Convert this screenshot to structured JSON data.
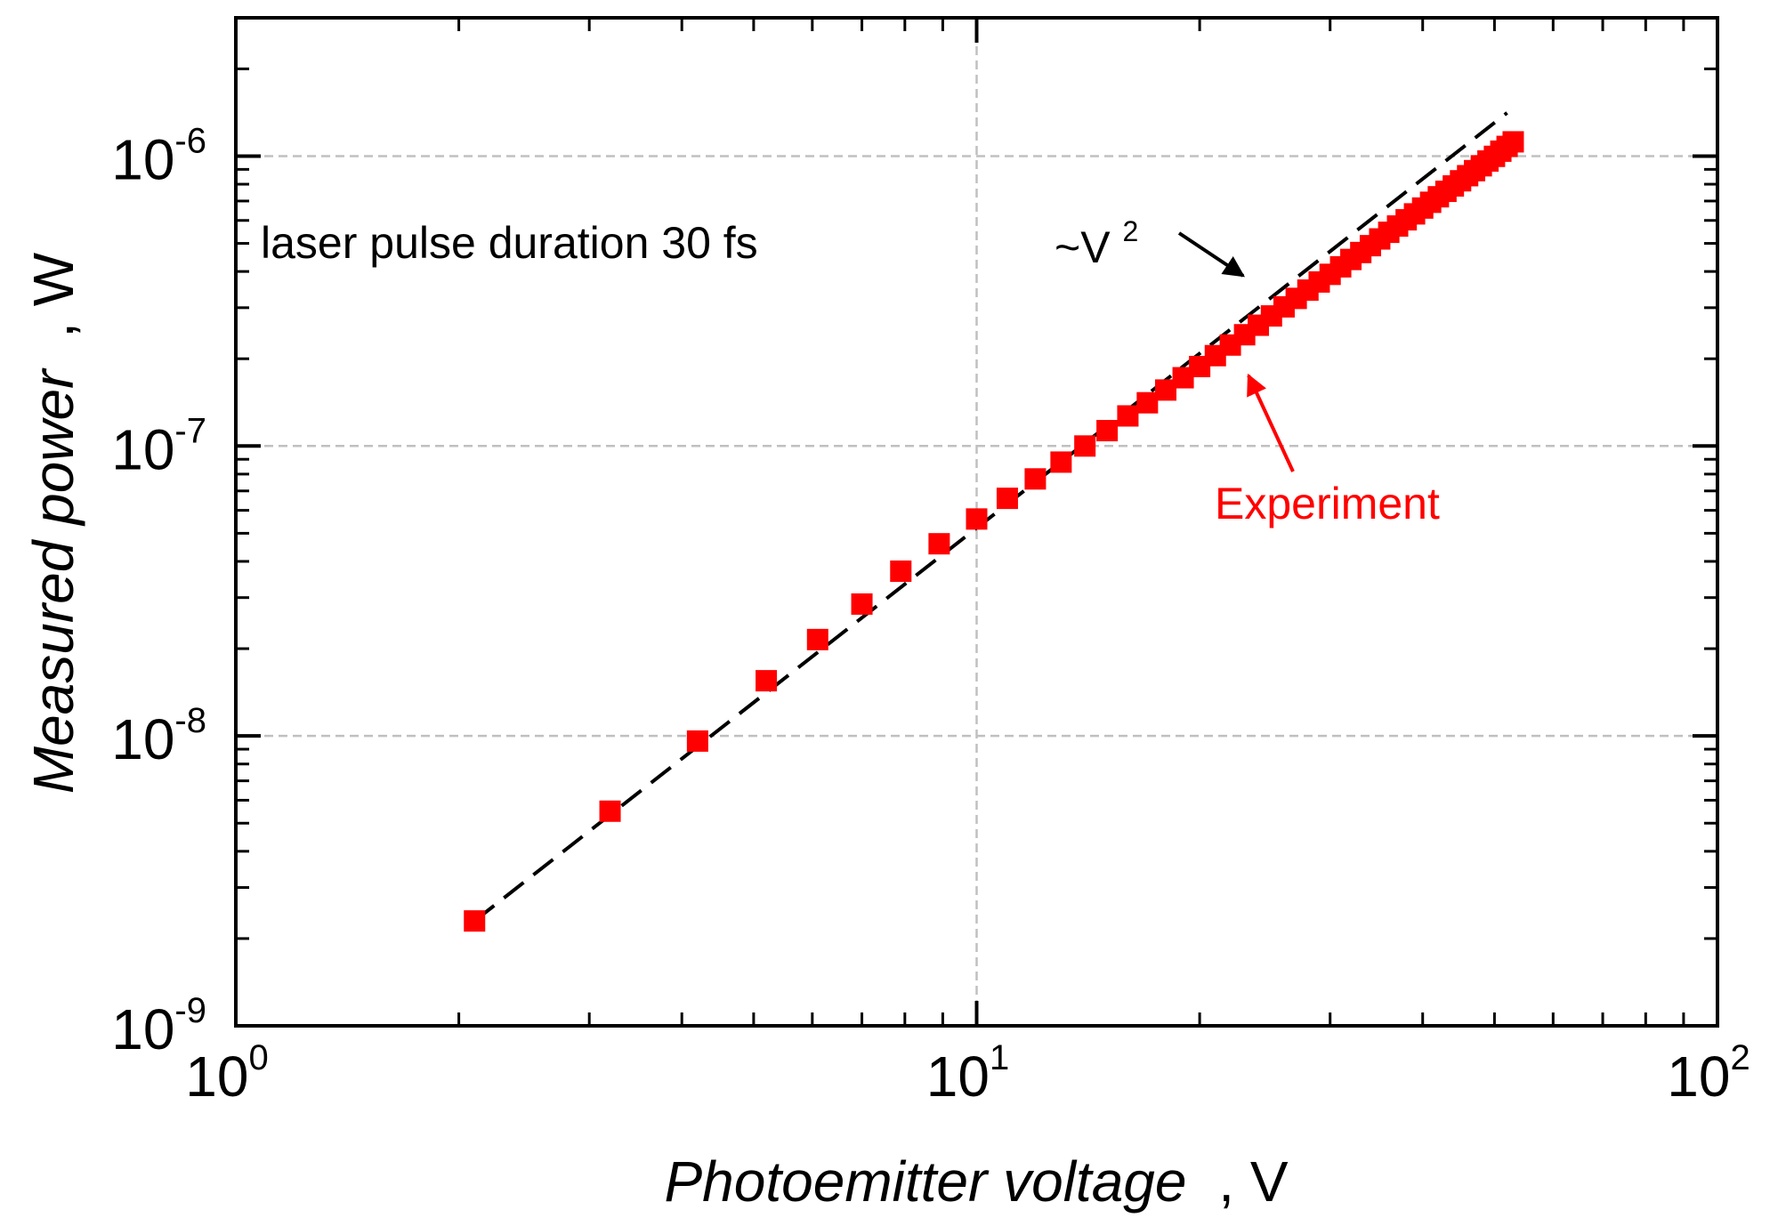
{
  "chart_data": {
    "type": "scatter",
    "title": "",
    "xlabel": "Photoemitter voltage",
    "xlabel_unit": ", V",
    "ylabel": "Measured power",
    "ylabel_unit": ", W",
    "xscale": "log",
    "yscale": "log",
    "xlim": [
      1,
      100
    ],
    "ylim": [
      1e-09,
      3e-06
    ],
    "grid": true,
    "x_ticks": [
      {
        "base": "10",
        "exp": "0",
        "value": 1
      },
      {
        "base": "10",
        "exp": "1",
        "value": 10
      },
      {
        "base": "10",
        "exp": "2",
        "value": 100
      }
    ],
    "y_ticks": [
      {
        "base": "10",
        "exp": "-9",
        "value": 1e-09
      },
      {
        "base": "10",
        "exp": "-8",
        "value": 1e-08
      },
      {
        "base": "10",
        "exp": "-7",
        "value": 1e-07
      },
      {
        "base": "10",
        "exp": "-6",
        "value": 1e-06
      }
    ],
    "series": [
      {
        "name": "Experiment",
        "marker": "square",
        "color": "#ff0000",
        "x": [
          2.1,
          3.2,
          4.2,
          5.2,
          6.1,
          7.0,
          7.9,
          8.9,
          10.0,
          11.0,
          12.0,
          13.0,
          14.0,
          15.0,
          16.0,
          17.0,
          18.0,
          19.0,
          20.0,
          21.0,
          22.0,
          23.0,
          24.0,
          25.0,
          26.0,
          27.0,
          28.0,
          29.0,
          30.0,
          31.0,
          32.0,
          33.0,
          34.0,
          35.0,
          36.0,
          37.0,
          38.0,
          39.0,
          40.0,
          41.0,
          42.0,
          43.0,
          44.0,
          45.0,
          46.0,
          47.0,
          48.0,
          49.0,
          50.0,
          51.0,
          52.0,
          53.0
        ],
        "y": [
          2.3e-09,
          5.5e-09,
          9.6e-09,
          1.55e-08,
          2.15e-08,
          2.85e-08,
          3.7e-08,
          4.6e-08,
          5.6e-08,
          6.6e-08,
          7.7e-08,
          8.8e-08,
          1e-07,
          1.13e-07,
          1.27e-07,
          1.41e-07,
          1.56e-07,
          1.72e-07,
          1.88e-07,
          2.05e-07,
          2.23e-07,
          2.42e-07,
          2.61e-07,
          2.81e-07,
          3.02e-07,
          3.23e-07,
          3.45e-07,
          3.68e-07,
          3.91e-07,
          4.15e-07,
          4.4e-07,
          4.65e-07,
          4.91e-07,
          5.18e-07,
          5.46e-07,
          5.74e-07,
          6.03e-07,
          6.32e-07,
          6.62e-07,
          6.93e-07,
          7.24e-07,
          7.56e-07,
          7.89e-07,
          8.22e-07,
          8.56e-07,
          8.91e-07,
          9.26e-07,
          9.62e-07,
          9.98e-07,
          1.04e-06,
          1.08e-06,
          1.12e-06
        ]
      },
      {
        "name": "~V^2",
        "style": "dashed",
        "color": "#000000",
        "x": [
          2.1,
          52
        ],
        "y": [
          2.3e-09,
          1.41e-06
        ]
      }
    ],
    "annotations": {
      "text_label": "laser pulse duration 30 fs",
      "fit_label_base": "~V",
      "fit_label_exp": "2",
      "experiment_label": "Experiment"
    }
  }
}
